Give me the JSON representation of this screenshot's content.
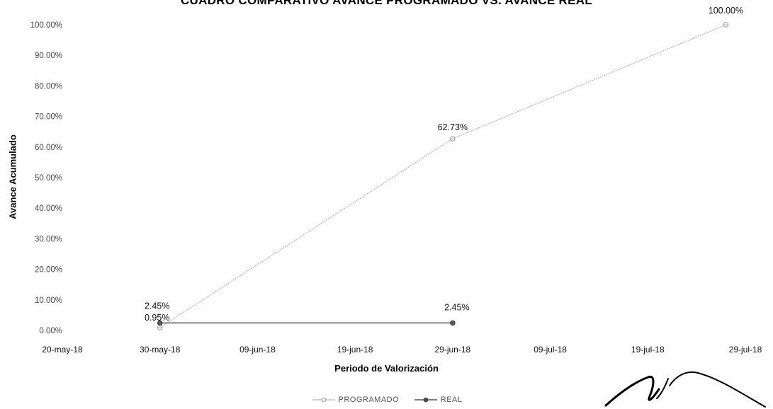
{
  "chart_data": {
    "type": "line",
    "title": "CUADRO COMPARATIVO AVANCE PROGRAMADO VS. AVANCE REAL",
    "xlabel": "Periodo de Valorización",
    "ylabel": "Avance Acumulado",
    "x_ticks": [
      "20-may-18",
      "30-may-18",
      "09-jun-18",
      "19-jun-18",
      "29-jun-18",
      "09-jul-18",
      "19-jul-18",
      "29-jul-18"
    ],
    "y_ticks": [
      "0.00%",
      "10.00%",
      "20.00%",
      "30.00%",
      "40.00%",
      "50.00%",
      "60.00%",
      "70.00%",
      "80.00%",
      "90.00%",
      "100.00%"
    ],
    "xlim": [
      "2018-05-20",
      "2018-07-29"
    ],
    "ylim": [
      0,
      100
    ],
    "grid": false,
    "legend_position": "bottom",
    "series": [
      {
        "name": "PROGRAMADO",
        "color": "#b8b8b8",
        "points": [
          {
            "x": "2018-05-30",
            "y": 0.95,
            "label": "0.95%"
          },
          {
            "x": "2018-06-29",
            "y": 62.73,
            "label": "62.73%"
          },
          {
            "x": "2018-07-27",
            "y": 100.0,
            "label": "100.00%"
          }
        ]
      },
      {
        "name": "REAL",
        "color": "#555555",
        "points": [
          {
            "x": "2018-05-30",
            "y": 2.45,
            "label": "2.45%"
          },
          {
            "x": "2018-06-29",
            "y": 2.45,
            "label": "2.45%"
          }
        ]
      }
    ]
  }
}
